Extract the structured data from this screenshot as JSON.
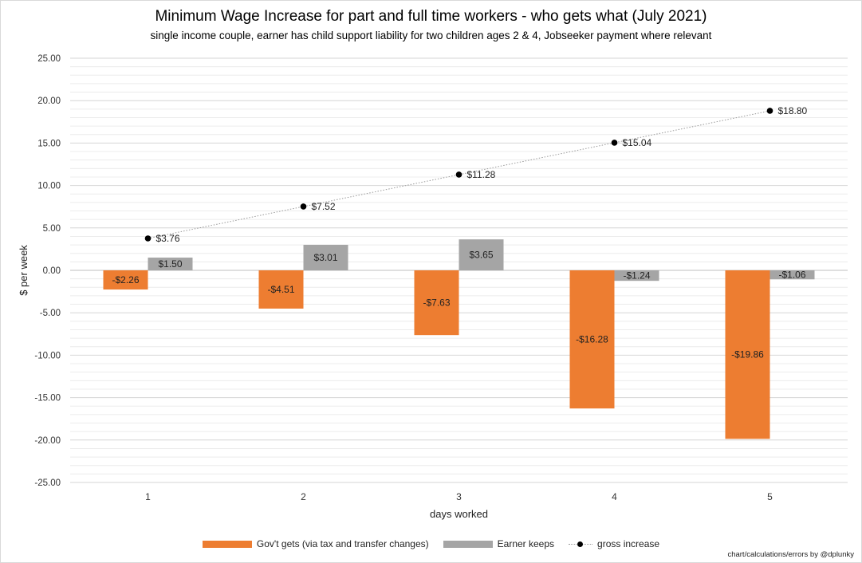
{
  "chart_data": {
    "type": "bar",
    "title": "Minimum Wage Increase for part and full time workers - who gets what (July 2021)",
    "subtitle": "single income couple, earner has child support liability for two children ages 2 & 4, Jobseeker payment where relevant",
    "xlabel": "days worked",
    "ylabel": "$ per week",
    "categories": [
      "1",
      "2",
      "3",
      "4",
      "5"
    ],
    "ylim": [
      -25,
      25
    ],
    "ytick_step": 5,
    "ytick_labels": [
      "25.00",
      "20.00",
      "15.00",
      "10.00",
      "5.00",
      "0.00",
      "-5.00",
      "-10.00",
      "-15.00",
      "-20.00",
      "-25.00"
    ],
    "grid": true,
    "legend_position": "bottom",
    "series": [
      {
        "name": "Gov't gets (via tax and transfer changes)",
        "kind": "bar",
        "color": "#ED7D31",
        "values": [
          -2.26,
          -4.51,
          -7.63,
          -16.28,
          -19.86
        ],
        "labels": [
          "-$2.26",
          "-$4.51",
          "-$7.63",
          "-$16.28",
          "-$19.86"
        ]
      },
      {
        "name": "Earner keeps",
        "kind": "bar",
        "color": "#A5A5A5",
        "values": [
          1.5,
          3.01,
          3.65,
          -1.24,
          -1.06
        ],
        "labels": [
          "$1.50",
          "$3.01",
          "$3.65",
          "-$1.24",
          "-$1.06"
        ]
      },
      {
        "name": "gross increase",
        "kind": "line-dotted-markers",
        "color": "#000000",
        "values": [
          3.76,
          7.52,
          11.28,
          15.04,
          18.8
        ],
        "labels": [
          "$3.76",
          "$7.52",
          "$11.28",
          "$15.04",
          "$18.80"
        ]
      }
    ]
  },
  "credit": "chart/calculations/errors   by @dplunky"
}
